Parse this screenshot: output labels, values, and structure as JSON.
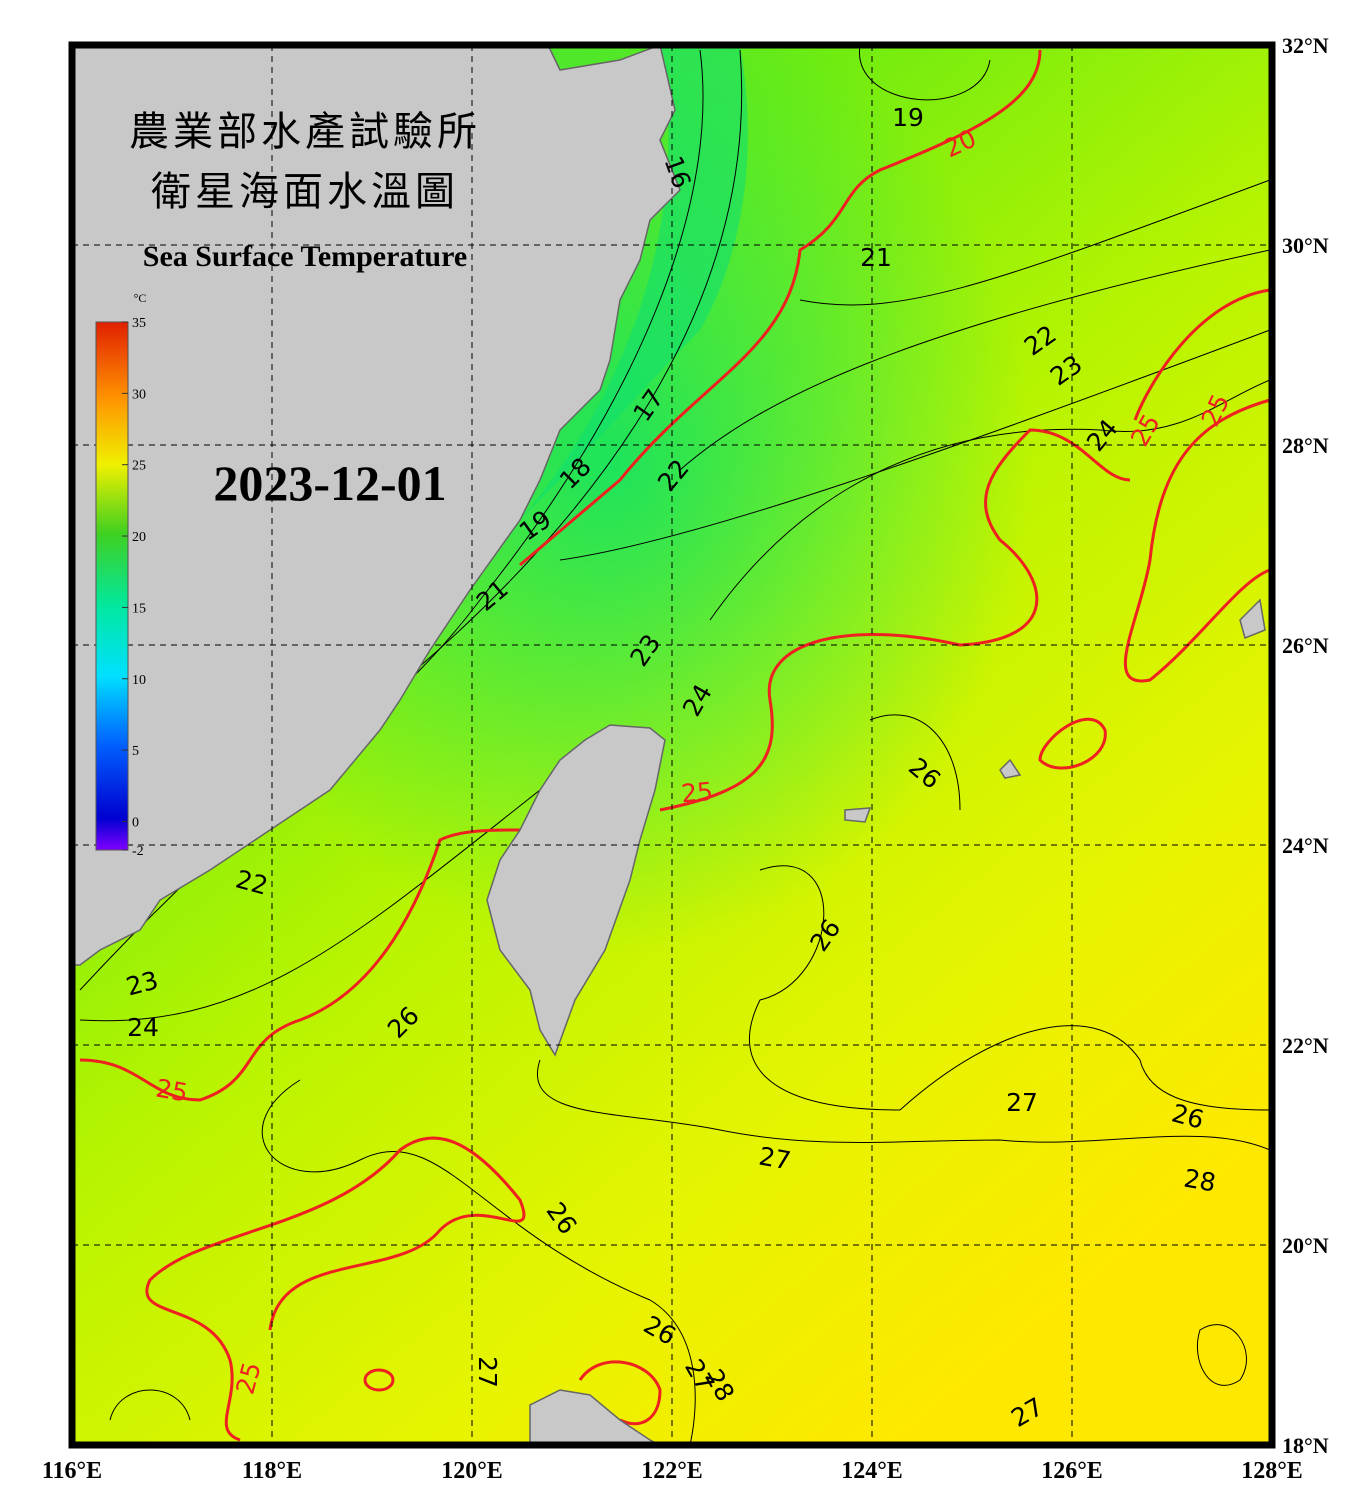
{
  "header": {
    "title_lines": [
      "農業部水產試驗所",
      "衛星海面水溫圖"
    ],
    "subtitle": "Sea Surface Temperature",
    "date": "2023-12-01"
  },
  "colorbar": {
    "unit": "°C",
    "range": [
      -2,
      35
    ],
    "ticks": [
      35,
      30,
      25,
      20,
      15,
      10,
      5,
      0,
      -2
    ]
  },
  "map": {
    "lon_range": [
      116,
      128
    ],
    "lat_range": [
      18,
      32
    ],
    "lon_ticks": [
      {
        "value": 116,
        "label": "116°E"
      },
      {
        "value": 118,
        "label": "118°E"
      },
      {
        "value": 120,
        "label": "120°E"
      },
      {
        "value": 122,
        "label": "122°E"
      },
      {
        "value": 124,
        "label": "124°E"
      },
      {
        "value": 126,
        "label": "126°E"
      },
      {
        "value": 128,
        "label": "128°E"
      }
    ],
    "lat_ticks": [
      {
        "value": 32,
        "label": "32°N"
      },
      {
        "value": 30,
        "label": "30°N"
      },
      {
        "value": 28,
        "label": "28°N"
      },
      {
        "value": 26,
        "label": "26°N"
      },
      {
        "value": 24,
        "label": "24°N"
      },
      {
        "value": 22,
        "label": "22°N"
      },
      {
        "value": 20,
        "label": "20°N"
      },
      {
        "value": 18,
        "label": "18°N"
      }
    ],
    "contour_labels": [
      19,
      20,
      16,
      21,
      22,
      23,
      17,
      24,
      25,
      25,
      18,
      22,
      19,
      21,
      23,
      24,
      26,
      25,
      22,
      26,
      23,
      24,
      26,
      25,
      27,
      26,
      27,
      28,
      26,
      26,
      25,
      27,
      27,
      28,
      27
    ]
  }
}
